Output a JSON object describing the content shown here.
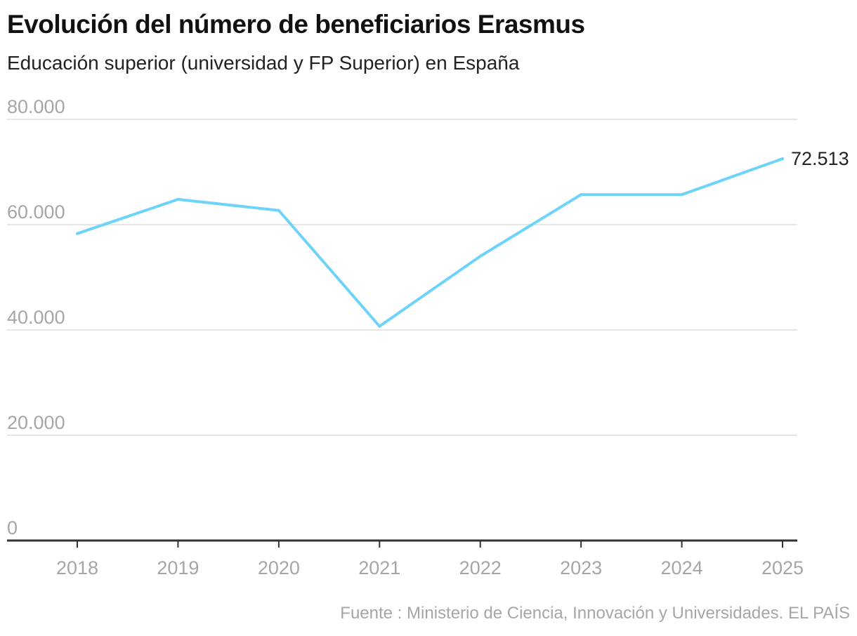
{
  "header": {
    "title": "Evolución del número de beneficiarios Erasmus",
    "subtitle": "Educación superior (universidad y FP Superior) en España"
  },
  "footer": {
    "source": "Fuente : Ministerio de Ciencia, Innovación y Universidades. EL PAÍS"
  },
  "colors": {
    "line": "#6dd3fb",
    "grid": "#e6e6e6",
    "axis": "#333333",
    "tick_text": "#a6a6a6"
  },
  "chart_data": {
    "type": "line",
    "title": "Evolución del número de beneficiarios Erasmus",
    "subtitle": "Educación superior (universidad y FP Superior) en España",
    "xlabel": "",
    "ylabel": "",
    "categories": [
      "2018",
      "2019",
      "2020",
      "2021",
      "2022",
      "2023",
      "2024",
      "2025"
    ],
    "series": [
      {
        "name": "Beneficiarios Erasmus",
        "values": [
          58300,
          64800,
          62700,
          40700,
          54000,
          65700,
          65700,
          72513
        ]
      }
    ],
    "ylim": [
      0,
      80000
    ],
    "yticks": [
      0,
      20000,
      40000,
      60000,
      80000
    ],
    "ytick_labels": [
      "0",
      "20.000",
      "40.000",
      "60.000",
      "80.000"
    ],
    "grid": true,
    "annotations": [
      {
        "category": "2025",
        "value": 72513,
        "text": "72.513"
      }
    ],
    "legend": "none"
  }
}
